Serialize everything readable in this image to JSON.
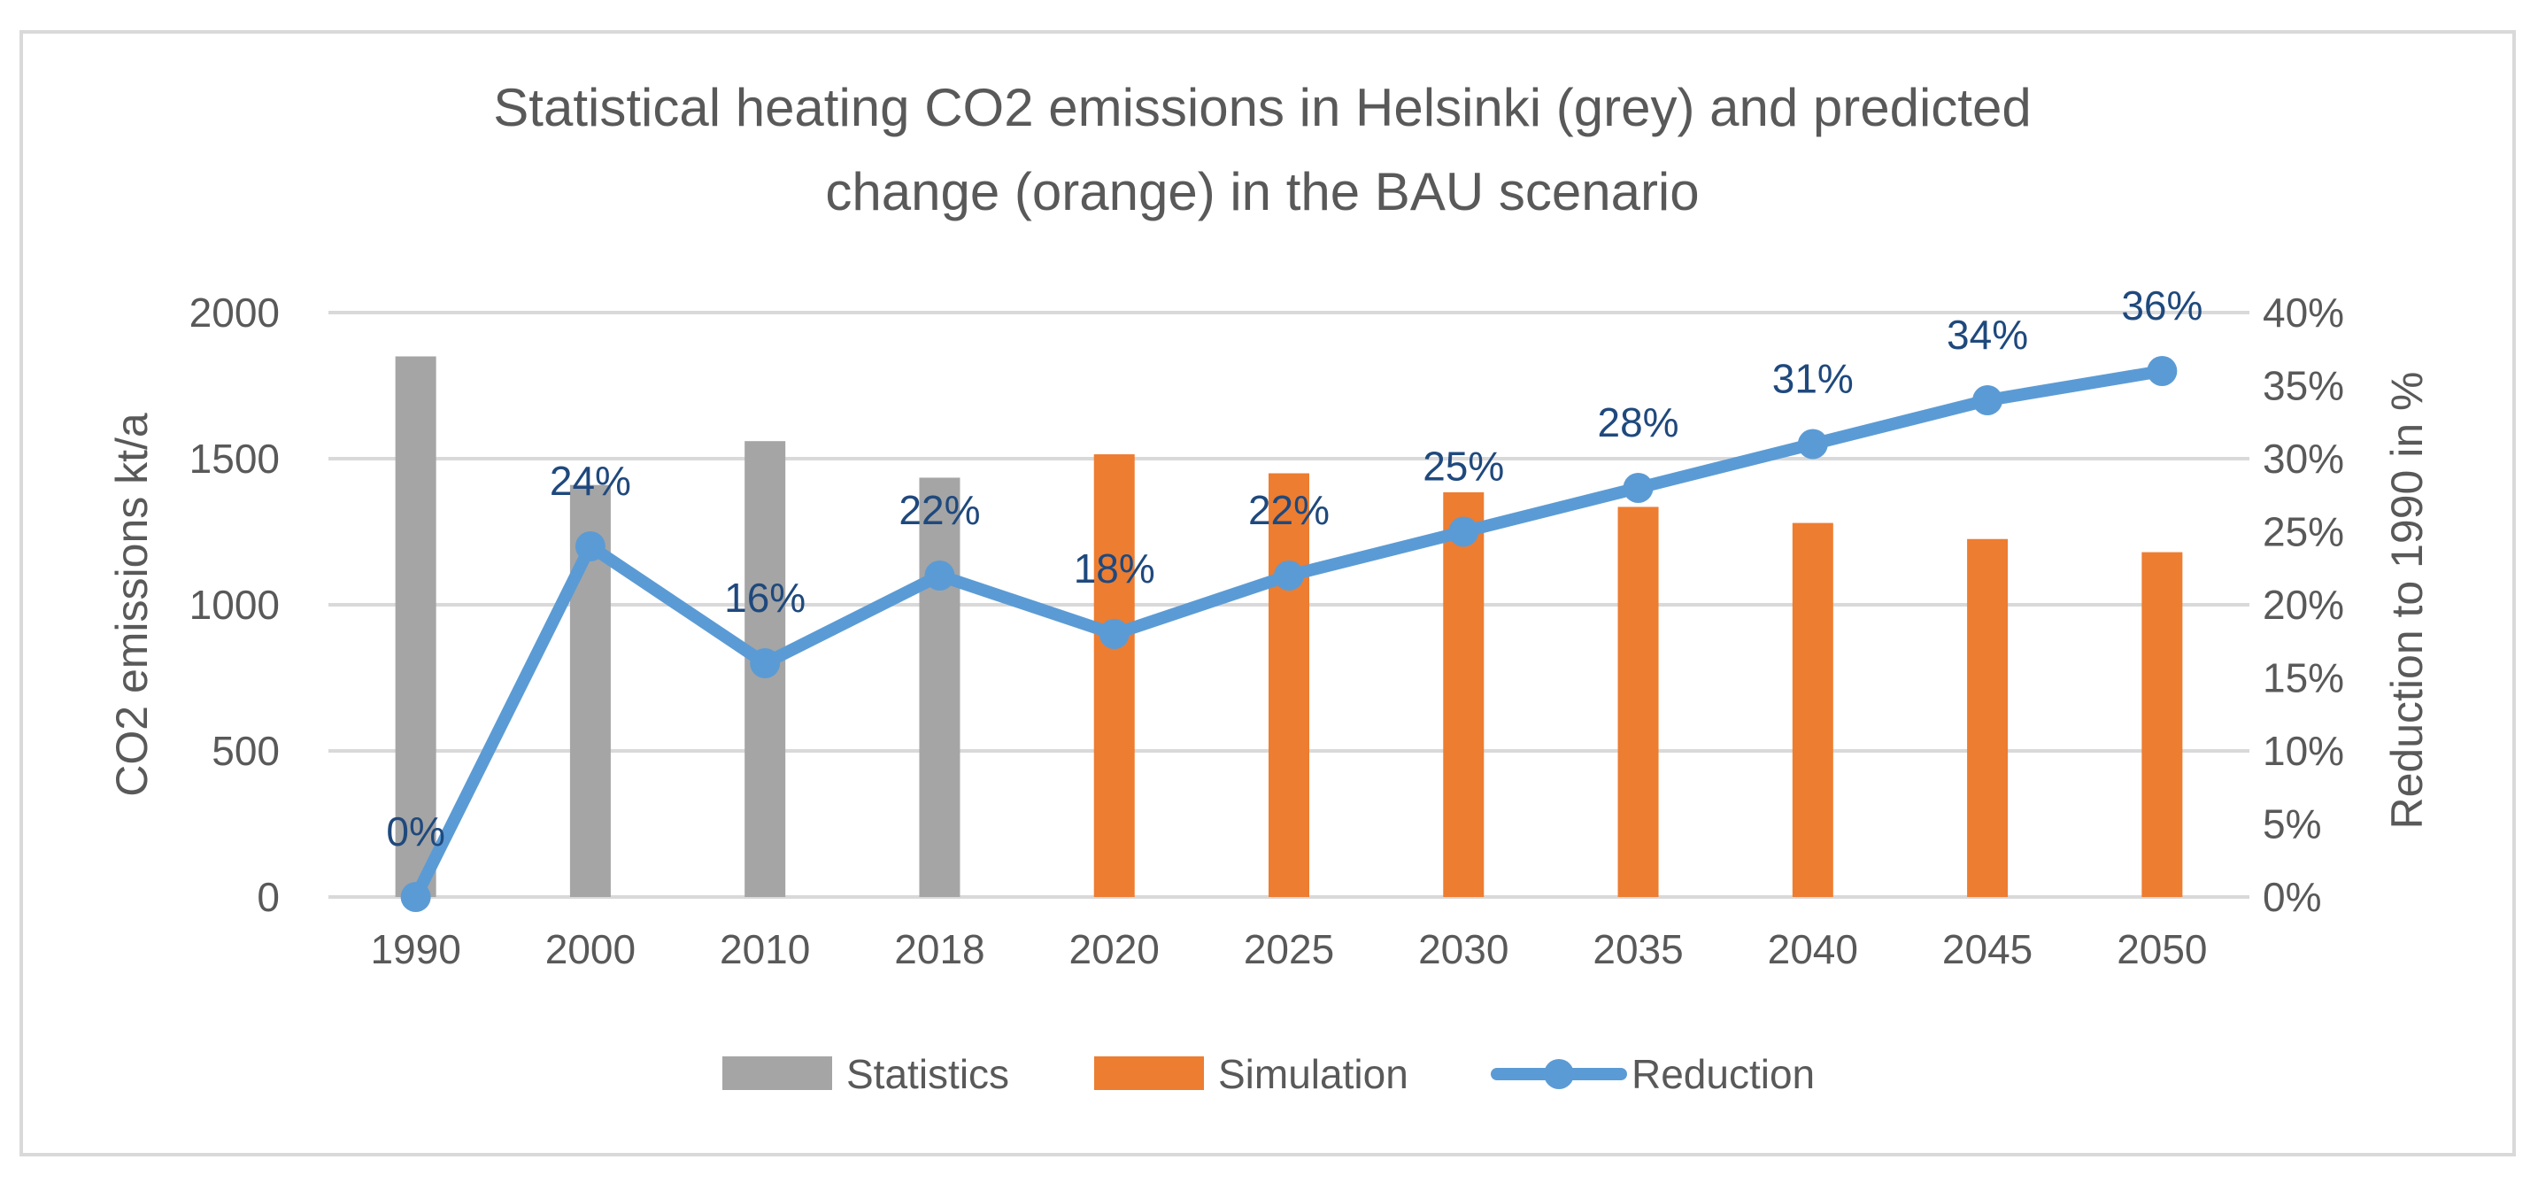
{
  "chart_data": {
    "type": "bar",
    "title_lines": [
      "Statistical heating CO2 emissions in Helsinki (grey) and predicted",
      "change (orange) in the BAU scenario"
    ],
    "categories": [
      "1990",
      "2000",
      "2010",
      "2018",
      "2020",
      "2025",
      "2030",
      "2035",
      "2040",
      "2045",
      "2050"
    ],
    "ylabel": "CO2 emissions kt/a",
    "ylabel_right": "Reduction to 1990 in %",
    "ylim": [
      0,
      2000
    ],
    "yticks": [
      "0",
      "500",
      "1000",
      "1500",
      "2000"
    ],
    "ylim_right": [
      0,
      40
    ],
    "yticks_right": [
      "0%",
      "5%",
      "10%",
      "15%",
      "20%",
      "25%",
      "30%",
      "35%",
      "40%"
    ],
    "grid": true,
    "legend_position": "bottom",
    "series": [
      {
        "name": "Statistics",
        "kind": "bar",
        "color": "#a5a5a5",
        "values": [
          1850,
          1410,
          1560,
          1435,
          null,
          null,
          null,
          null,
          null,
          null,
          null
        ]
      },
      {
        "name": "Simulation",
        "kind": "bar",
        "color": "#ed7d31",
        "values": [
          null,
          null,
          null,
          null,
          1515,
          1450,
          1385,
          1335,
          1280,
          1225,
          1180
        ]
      },
      {
        "name": "Reduction",
        "kind": "line",
        "axis": "right",
        "color": "#5b9bd5",
        "values": [
          0,
          24,
          16,
          22,
          18,
          22,
          25,
          28,
          31,
          34,
          36
        ],
        "labels": [
          "0%",
          "24%",
          "16%",
          "22%",
          "18%",
          "22%",
          "25%",
          "28%",
          "31%",
          "34%",
          "36%"
        ],
        "label_color": "#1f497d"
      }
    ]
  }
}
